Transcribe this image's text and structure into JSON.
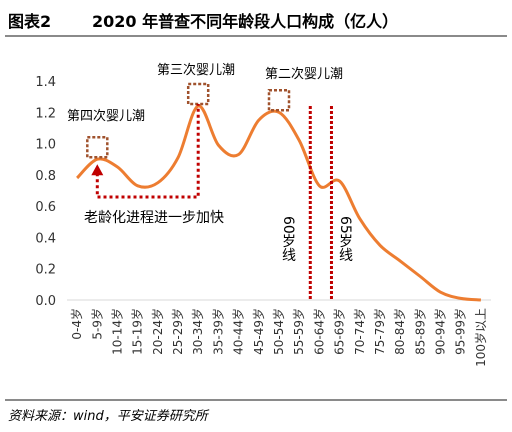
{
  "figure": {
    "label": "图表2",
    "title": "2020 年普查不同年龄段人口构成（亿人）"
  },
  "source": "资料来源：wind，平安证券研究所",
  "colors": {
    "line": "#ED7D31",
    "box": "#A0522D",
    "dotted_red": "#C00000",
    "axis": "#d9d9d9"
  },
  "chart_data": {
    "type": "line",
    "title": "",
    "xlabel": "",
    "ylabel": "",
    "ylim": [
      0,
      1.4
    ],
    "yticks": [
      "0.0",
      "0.2",
      "0.4",
      "0.6",
      "0.8",
      "1.0",
      "1.2",
      "1.4"
    ],
    "categories": [
      "0-4岁",
      "5-9岁",
      "10-14岁",
      "15-19岁",
      "20-24岁",
      "25-29岁",
      "30-34岁",
      "35-39岁",
      "40-44岁",
      "45-49岁",
      "50-54岁",
      "55-59岁",
      "60-64岁",
      "65-69岁",
      "70-74岁",
      "75-79岁",
      "80-84岁",
      "85-89岁",
      "90-94岁",
      "95-99岁",
      "100岁以上"
    ],
    "series": [
      {
        "values": [
          0.78,
          0.9,
          0.85,
          0.73,
          0.75,
          0.91,
          1.24,
          0.99,
          0.93,
          1.15,
          1.2,
          1.02,
          0.73,
          0.76,
          0.52,
          0.35,
          0.25,
          0.15,
          0.05,
          0.01,
          0.0
        ]
      }
    ],
    "grid": false,
    "annotations": {
      "boom3": "第三次婴儿潮",
      "boom2": "第二次婴儿潮",
      "boom4": "第四次婴儿潮",
      "aging": "老龄化进程进一步加快",
      "line60": "60岁线",
      "line65": "65岁线"
    }
  }
}
